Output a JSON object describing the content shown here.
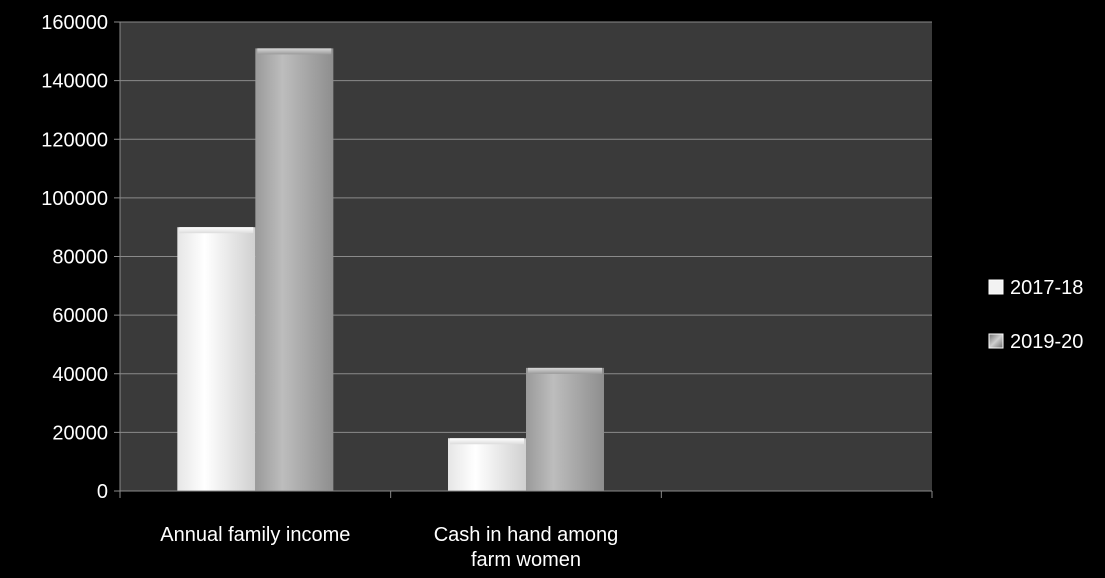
{
  "chart_data": {
    "type": "bar",
    "title": "",
    "xlabel": "",
    "ylabel": "",
    "categories": [
      "Annual family income",
      "Cash in hand  among farm women",
      ""
    ],
    "category_lines": [
      [
        "Annual family income"
      ],
      [
        "Cash in hand  among",
        "farm women"
      ],
      []
    ],
    "series": [
      {
        "name": "2017-18",
        "values": [
          90000,
          18000,
          null
        ]
      },
      {
        "name": "2019-20",
        "values": [
          151000,
          42000,
          null
        ]
      }
    ],
    "ylim": [
      0,
      160000
    ],
    "yticks": [
      0,
      20000,
      40000,
      60000,
      80000,
      100000,
      120000,
      140000,
      160000
    ],
    "ytick_labels": [
      "0",
      "20000",
      "40000",
      "60000",
      "80000",
      "100000",
      "120000",
      "140000",
      "160000"
    ],
    "grid": true,
    "legend_position": "right",
    "colors": {
      "background": "#000000",
      "plot_area": "#3a3a3a",
      "gridline": "#8a8a8a",
      "axis_text": "#ffffff",
      "series_2017_18": "#f2f2f2",
      "series_2019_20": "#a6a6a6"
    }
  }
}
